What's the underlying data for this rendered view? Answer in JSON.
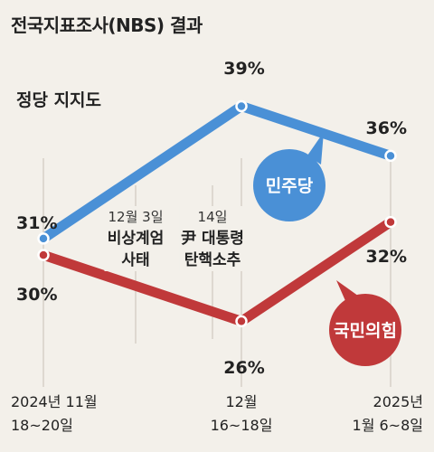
{
  "header": {
    "title": "전국지표조사(NBS) 결과",
    "subtitle": "정당 지지도"
  },
  "colors": {
    "background": "#f3f0ea",
    "democratic": "#4a90d6",
    "ppp": "#c0393a",
    "guide": "#cfc9bf"
  },
  "chart_data": {
    "type": "line",
    "title": "전국지표조사(NBS) 결과",
    "subtitle": "정당 지지도",
    "x": [
      [
        "2024년 11월",
        "18~20일"
      ],
      [
        "12월",
        "16~18일"
      ],
      [
        "2025년",
        "1월 6~8일"
      ]
    ],
    "series": [
      {
        "name": "민주당",
        "values": [
          31,
          39,
          36
        ],
        "labels": [
          "31%",
          "39%",
          "36%"
        ],
        "color": "#4a90d6"
      },
      {
        "name": "국민의힘",
        "values": [
          30,
          26,
          32
        ],
        "labels": [
          "30%",
          "26%",
          "32%"
        ],
        "color": "#c0393a"
      }
    ],
    "ylim": [
      24,
      40.5
    ],
    "grid": false,
    "legend": "inline-bubbles",
    "annotations": [
      {
        "date": "12월 3일",
        "event": [
          "비상계엄",
          "사태"
        ]
      },
      {
        "date": "14일",
        "event": [
          "尹 대통령",
          "탄핵소추"
        ]
      }
    ]
  }
}
